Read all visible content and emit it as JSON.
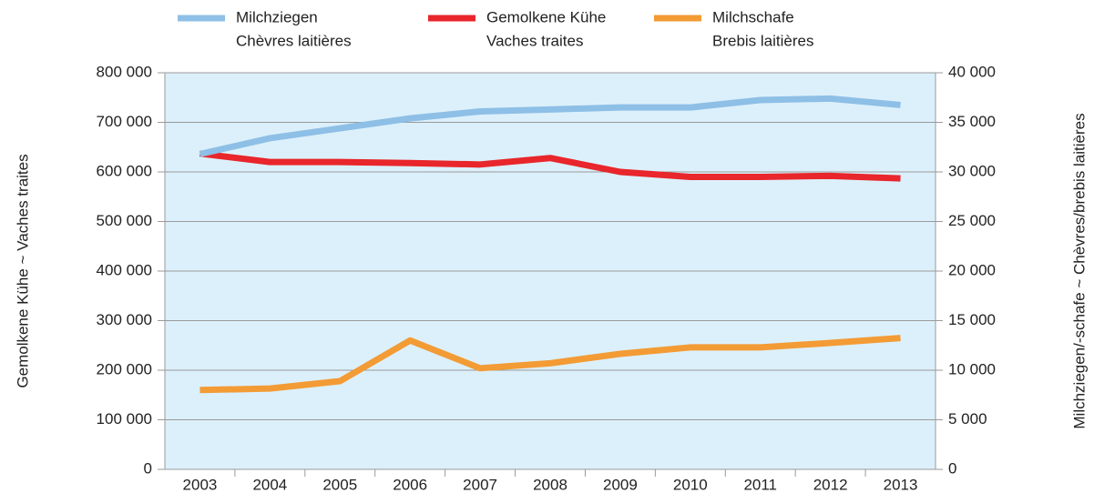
{
  "chart_data": {
    "type": "line",
    "ylabel": "Gemolkene Kühe   ~   Vaches traites",
    "y2label": "Milchziegen/-schafe   ~   Chèvres/brebis laitières",
    "categories": [
      "2003",
      "2004",
      "2005",
      "2006",
      "2007",
      "2008",
      "2009",
      "2010",
      "2011",
      "2012",
      "2013"
    ],
    "series": [
      {
        "name": [
          "Milchziegen",
          "Chèvres laitières"
        ],
        "color": "#8ebfe6",
        "axis": "y2",
        "values": [
          31800,
          33400,
          34400,
          35400,
          36100,
          36300,
          36500,
          36500,
          37250,
          37400,
          36750
        ]
      },
      {
        "name": [
          "Gemolkene Kühe",
          "Vaches traites"
        ],
        "color": "#e8262b",
        "axis": "y",
        "values": [
          637000,
          620000,
          620000,
          618000,
          615000,
          628000,
          600000,
          590000,
          590000,
          592000,
          587000
        ]
      },
      {
        "name": [
          "Milchschafe",
          "Brebis laitières"
        ],
        "color": "#f39b35",
        "axis": "y2",
        "values": [
          8000,
          8150,
          8900,
          13000,
          10200,
          10700,
          11650,
          12300,
          12300,
          12750,
          13250
        ]
      }
    ],
    "ylim": [
      0,
      800000
    ],
    "yticks": [
      0,
      {
        "value": 100000,
        "label": "100 000"
      },
      {
        "value": 200000,
        "label": "200 000"
      },
      {
        "value": 300000,
        "label": "300 000"
      },
      {
        "value": 400000,
        "label": "400 000"
      },
      {
        "value": 500000,
        "label": "500 000"
      },
      {
        "value": 600000,
        "label": "600 000"
      },
      {
        "value": 700000,
        "label": "700 000"
      },
      {
        "value": 800000,
        "label": "800 000"
      }
    ],
    "y2lim": [
      0,
      40000
    ],
    "y2ticks": [
      0,
      {
        "value": 5000,
        "label": "5 000"
      },
      {
        "value": 10000,
        "label": "10 000"
      },
      {
        "value": 15000,
        "label": "15 000"
      },
      {
        "value": 20000,
        "label": "20 000"
      },
      {
        "value": 25000,
        "label": "25 000"
      },
      {
        "value": 30000,
        "label": "30 000"
      },
      {
        "value": 35000,
        "label": "35 000"
      },
      {
        "value": 40000,
        "label": "40 000"
      }
    ],
    "grid": true,
    "background": "#dcf0fb"
  }
}
